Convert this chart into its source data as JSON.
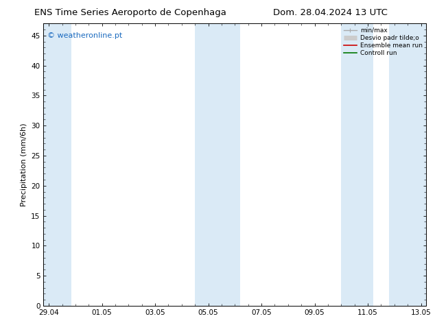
{
  "title_left": "ENS Time Series Aeroporto de Copenhaga",
  "title_right": "Dom. 28.04.2024 13 UTC",
  "ylabel": "Precipitation (mm/6h)",
  "watermark": "© weatheronline.pt",
  "watermark_color": "#1a6abf",
  "background_color": "#ffffff",
  "plot_bg_color": "#ffffff",
  "ylim": [
    0,
    47
  ],
  "yticks": [
    0,
    5,
    10,
    15,
    20,
    25,
    30,
    35,
    40,
    45
  ],
  "xtick_labels": [
    "29.04",
    "01.05",
    "03.05",
    "05.05",
    "07.05",
    "09.05",
    "11.05",
    "13.05"
  ],
  "xtick_positions": [
    0,
    2,
    4,
    6,
    8,
    10,
    12,
    14
  ],
  "shade_regions": [
    [
      -0.2,
      0.85
    ],
    [
      5.5,
      7.2
    ],
    [
      11.0,
      12.2
    ],
    [
      12.8,
      14.2
    ]
  ],
  "shade_color": "#daeaf6",
  "legend_entries": [
    "min/max",
    "Desvio padr tilde;o",
    "Ensemble mean run",
    "Controll run"
  ],
  "xlim": [
    -0.2,
    14.2
  ],
  "title_fontsize": 9.5,
  "label_fontsize": 8,
  "tick_fontsize": 7.5,
  "watermark_fontsize": 8
}
